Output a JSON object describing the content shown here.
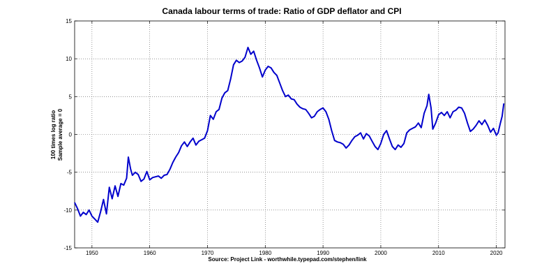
{
  "chart_data": {
    "type": "line",
    "title": "Canada labour terms of trade: Ratio of GDP deflator and CPI",
    "xlabel": "Source: Project Link - worthwhile.typepad.com/stephen/link",
    "ylabel_line1": "100 times log ratio",
    "ylabel_line2": "Sample average = 0",
    "xlim": [
      1947,
      2021.5
    ],
    "ylim": [
      -15,
      15
    ],
    "x_ticks": [
      1950,
      1960,
      1970,
      1980,
      1990,
      2000,
      2010,
      2020
    ],
    "x_tick_labels": [
      "1950",
      "1960",
      "1970",
      "1980",
      "1990",
      "2000",
      "2010",
      "2020"
    ],
    "y_ticks": [
      -15,
      -10,
      -5,
      0,
      5,
      10,
      15
    ],
    "y_tick_labels": [
      "-15",
      "-10",
      "-5",
      "0",
      "5",
      "10",
      "15"
    ],
    "grid": true,
    "line_color": "#0000cc",
    "series": [
      {
        "x": [
          1947.0,
          1947.5,
          1948.0,
          1948.5,
          1949.0,
          1949.5,
          1950.0,
          1950.5,
          1951.0,
          1951.5,
          1952.0,
          1952.5,
          1953.0,
          1953.5,
          1954.0,
          1954.5,
          1955.0,
          1955.5,
          1956.0,
          1956.3,
          1956.7,
          1957.0,
          1957.5,
          1958.0,
          1958.5,
          1959.0,
          1959.5,
          1960.0,
          1960.5,
          1961.0,
          1961.5,
          1962.0,
          1962.5,
          1963.0,
          1963.5,
          1964.0,
          1964.5,
          1965.0,
          1965.5,
          1966.0,
          1966.5,
          1967.0,
          1967.5,
          1968.0,
          1968.5,
          1969.0,
          1969.5,
          1970.0,
          1970.5,
          1971.0,
          1971.5,
          1972.0,
          1972.5,
          1973.0,
          1973.5,
          1974.0,
          1974.5,
          1975.0,
          1975.5,
          1976.0,
          1976.5,
          1977.0,
          1977.5,
          1978.0,
          1978.5,
          1979.0,
          1979.5,
          1980.0,
          1980.5,
          1981.0,
          1981.5,
          1982.0,
          1982.5,
          1983.0,
          1983.5,
          1984.0,
          1984.5,
          1985.0,
          1985.5,
          1986.0,
          1986.5,
          1987.0,
          1987.5,
          1988.0,
          1988.5,
          1989.0,
          1989.5,
          1990.0,
          1990.5,
          1991.0,
          1991.5,
          1992.0,
          1992.5,
          1993.0,
          1993.5,
          1994.0,
          1994.5,
          1995.0,
          1995.5,
          1996.0,
          1996.5,
          1997.0,
          1997.5,
          1998.0,
          1998.5,
          1999.0,
          1999.5,
          2000.0,
          2000.5,
          2001.0,
          2001.5,
          2002.0,
          2002.5,
          2003.0,
          2003.5,
          2004.0,
          2004.5,
          2005.0,
          2005.5,
          2006.0,
          2006.5,
          2007.0,
          2007.5,
          2008.0,
          2008.3,
          2008.7,
          2009.0,
          2009.5,
          2010.0,
          2010.5,
          2011.0,
          2011.5,
          2012.0,
          2012.5,
          2013.0,
          2013.5,
          2014.0,
          2014.5,
          2015.0,
          2015.5,
          2016.0,
          2016.5,
          2017.0,
          2017.5,
          2018.0,
          2018.5,
          2019.0,
          2019.5,
          2020.0,
          2020.3,
          2020.7,
          2021.0,
          2021.3
        ],
        "y": [
          -9.0,
          -9.8,
          -10.8,
          -10.3,
          -10.6,
          -10.0,
          -10.8,
          -11.2,
          -11.6,
          -10.2,
          -8.6,
          -10.5,
          -7.0,
          -8.5,
          -6.8,
          -8.2,
          -6.5,
          -6.7,
          -5.8,
          -3.0,
          -4.6,
          -5.4,
          -5.0,
          -5.3,
          -6.2,
          -5.9,
          -4.9,
          -6.0,
          -5.7,
          -5.6,
          -5.5,
          -5.8,
          -5.4,
          -5.3,
          -4.6,
          -3.7,
          -3.0,
          -2.4,
          -1.5,
          -1.0,
          -1.6,
          -1.0,
          -0.5,
          -1.4,
          -0.9,
          -0.7,
          -0.5,
          0.5,
          2.5,
          2.0,
          3.0,
          3.3,
          4.8,
          5.5,
          5.8,
          7.3,
          9.2,
          9.8,
          9.5,
          9.7,
          10.2,
          11.5,
          10.6,
          11.0,
          9.8,
          8.8,
          7.6,
          8.5,
          9.0,
          8.8,
          8.2,
          7.8,
          6.8,
          5.8,
          5.0,
          5.2,
          4.7,
          4.6,
          4.0,
          3.6,
          3.4,
          3.3,
          2.8,
          2.2,
          2.4,
          3.0,
          3.3,
          3.5,
          3.0,
          2.0,
          0.5,
          -0.8,
          -1.0,
          -1.1,
          -1.3,
          -1.8,
          -1.4,
          -0.8,
          -0.3,
          -0.1,
          0.2,
          -0.6,
          0.1,
          -0.2,
          -0.9,
          -1.6,
          -2.0,
          -1.2,
          0.0,
          0.5,
          -0.6,
          -1.6,
          -2.0,
          -1.4,
          -1.7,
          -1.2,
          0.2,
          0.6,
          0.8,
          1.0,
          1.5,
          0.9,
          2.8,
          3.8,
          5.3,
          3.5,
          0.7,
          1.5,
          2.6,
          2.9,
          2.5,
          3.0,
          2.2,
          3.0,
          3.2,
          3.6,
          3.5,
          2.8,
          1.5,
          0.4,
          0.7,
          1.2,
          1.8,
          1.3,
          1.9,
          1.2,
          0.3,
          0.8,
          -0.1,
          0.2,
          1.5,
          2.4,
          4.1
        ]
      }
    ]
  }
}
